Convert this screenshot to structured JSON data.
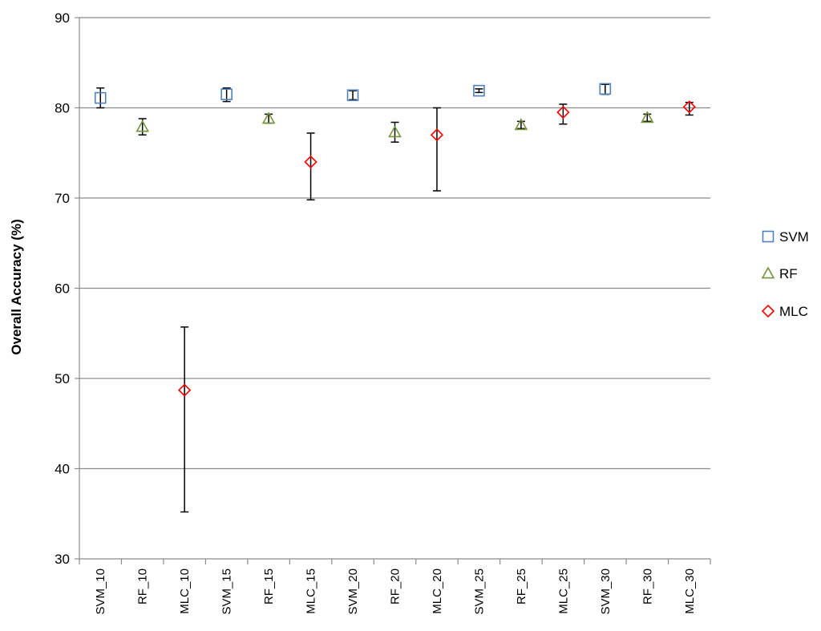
{
  "chart_data": {
    "type": "scatter",
    "title": "",
    "xlabel": "",
    "ylabel": "Overall Accuracy (%)",
    "ylim": [
      30,
      90
    ],
    "yticks": [
      30,
      40,
      50,
      60,
      70,
      80,
      90
    ],
    "grid": "horizontal",
    "legend": "right",
    "error_bars": true,
    "categories": [
      "SVM_10",
      "RF_10",
      "MLC_10",
      "SVM_15",
      "RF_15",
      "MLC_15",
      "SVM_20",
      "RF_20",
      "MLC_20",
      "SVM_25",
      "RF_25",
      "MLC_25",
      "SVM_30",
      "RF_30",
      "MLC_30"
    ],
    "series": [
      {
        "name": "SVM",
        "marker": "square",
        "color": "#4f81bd",
        "points": [
          {
            "category": "SVM_10",
            "y": 81.1,
            "low": 80.0,
            "high": 82.2
          },
          {
            "category": "SVM_15",
            "y": 81.5,
            "low": 80.7,
            "high": 82.2
          },
          {
            "category": "SVM_20",
            "y": 81.4,
            "low": 80.9,
            "high": 81.9
          },
          {
            "category": "SVM_25",
            "y": 81.9,
            "low": 81.7,
            "high": 82.1
          },
          {
            "category": "SVM_30",
            "y": 82.1,
            "low": 81.5,
            "high": 82.6
          }
        ]
      },
      {
        "name": "RF",
        "marker": "triangle",
        "color": "#77933c",
        "points": [
          {
            "category": "RF_10",
            "y": 77.9,
            "low": 77.0,
            "high": 78.8
          },
          {
            "category": "RF_15",
            "y": 78.8,
            "low": 78.3,
            "high": 79.3
          },
          {
            "category": "RF_20",
            "y": 77.3,
            "low": 76.2,
            "high": 78.4
          },
          {
            "category": "RF_25",
            "y": 78.1,
            "low": 77.7,
            "high": 78.5
          },
          {
            "category": "RF_30",
            "y": 78.9,
            "low": 78.5,
            "high": 79.3
          }
        ]
      },
      {
        "name": "MLC",
        "marker": "diamond",
        "color": "#ff0000",
        "points": [
          {
            "category": "MLC_10",
            "y": 48.7,
            "low": 35.2,
            "high": 55.7
          },
          {
            "category": "MLC_15",
            "y": 74.0,
            "low": 69.8,
            "high": 77.2
          },
          {
            "category": "MLC_20",
            "y": 77.0,
            "low": 70.8,
            "high": 80.0
          },
          {
            "category": "MLC_25",
            "y": 79.5,
            "low": 78.2,
            "high": 80.4
          },
          {
            "category": "MLC_30",
            "y": 80.1,
            "low": 79.2,
            "high": 80.6
          }
        ]
      }
    ]
  }
}
